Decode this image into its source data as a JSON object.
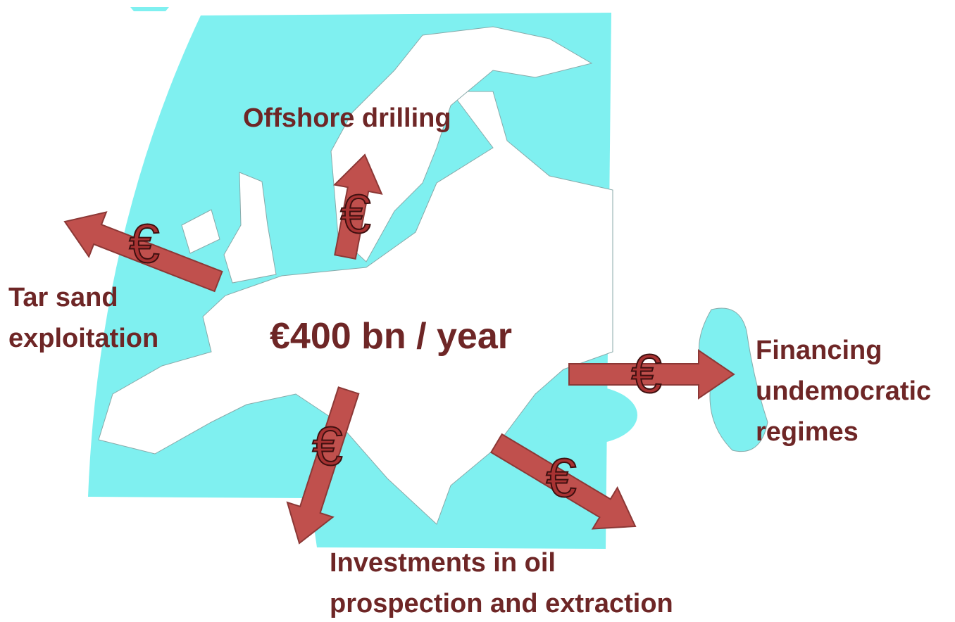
{
  "center_label": "€400 bn / year",
  "labels": [
    {
      "lines": [
        "Offshore drilling"
      ]
    },
    {
      "lines": [
        "Tar sand",
        "exploitation"
      ]
    },
    {
      "lines": [
        "Financing",
        "undemocratic",
        "regimes"
      ]
    },
    {
      "lines": [
        "Investments in oil",
        "prospection and extraction"
      ]
    }
  ],
  "arrows": [
    {
      "symbol": "€"
    },
    {
      "symbol": "€"
    },
    {
      "symbol": "€"
    },
    {
      "symbol": "€"
    },
    {
      "symbol": "€"
    }
  ]
}
